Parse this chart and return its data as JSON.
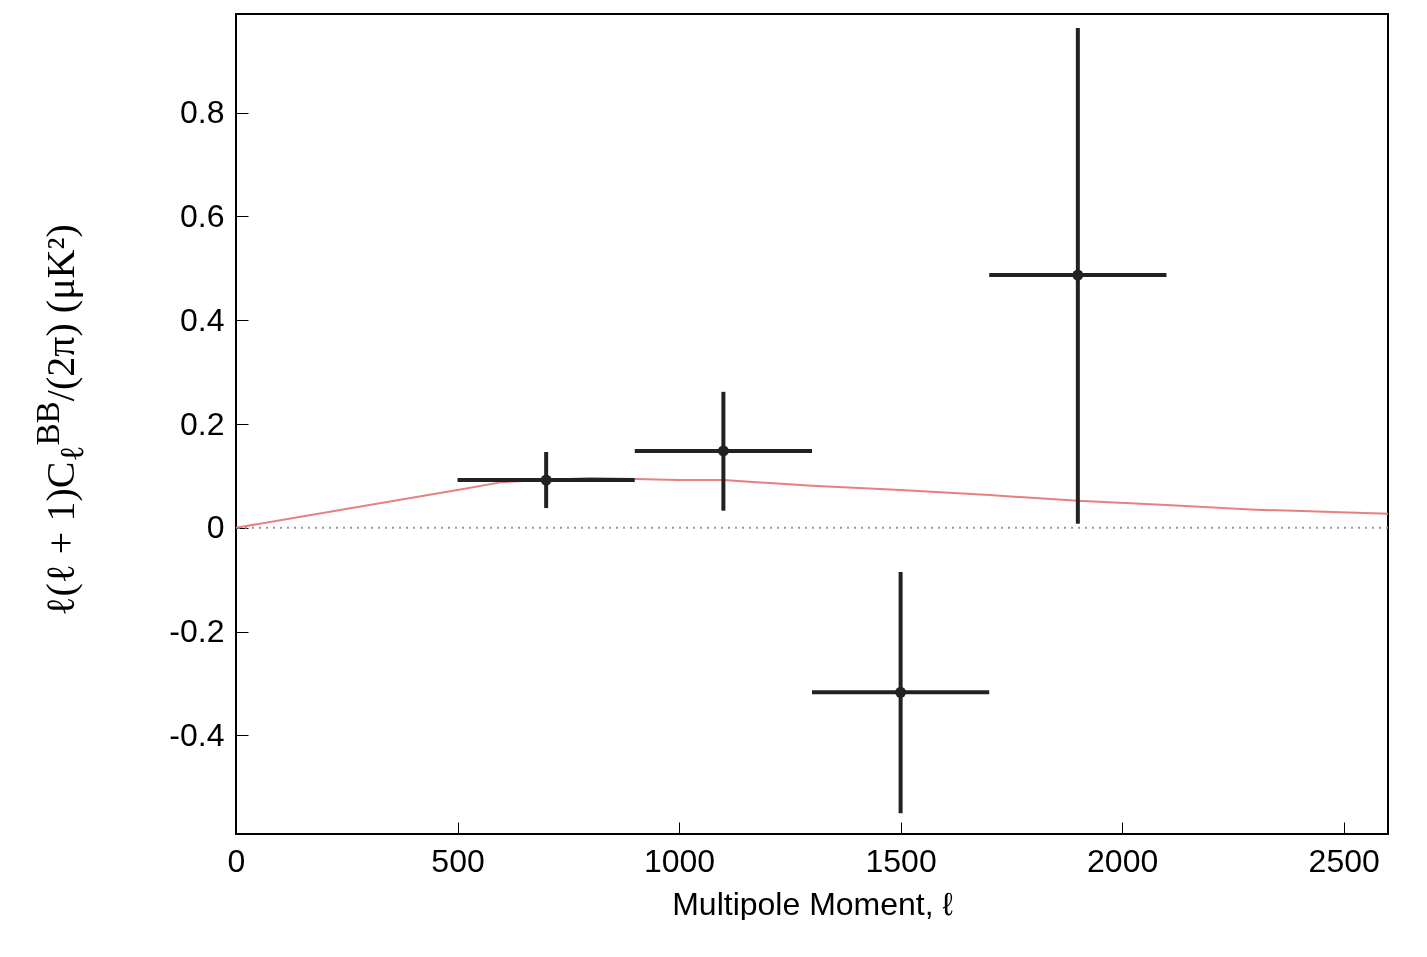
{
  "chart_data": {
    "type": "scatter",
    "xlabel": "Multipole Moment, ℓ",
    "ylabel": "ℓ(ℓ + 1)C$_{ℓ}$$^{BB}$/(2π)  (μK²)",
    "xlim": [
      0,
      2600
    ],
    "xticks": [
      0,
      500,
      1000,
      1500,
      2000,
      2500
    ],
    "ylim": [
      -0.59,
      0.99
    ],
    "yticks": [
      -0.4,
      -0.2,
      0,
      0.2,
      0.4,
      0.6,
      0.8
    ],
    "grid": false,
    "marker": "circle",
    "ref_lines": [
      {
        "axis": "y",
        "value": 0,
        "color": "#999999",
        "line_style": "dotted"
      }
    ],
    "series": [
      {
        "type": "line",
        "color": "#e88080",
        "line_style": "solid",
        "marker": "none",
        "x": [
          0,
          500,
          600,
          800,
          1000,
          1100,
          1300,
          1500,
          1700,
          1900,
          2100,
          2300,
          2600
        ],
        "values": [
          0,
          0.073,
          0.088,
          0.096,
          0.092,
          0.092,
          0.081,
          0.073,
          0.063,
          0.052,
          0.044,
          0.035,
          0.027
        ]
      },
      {
        "color": "#222222",
        "x": [
          700,
          1100,
          1500,
          1900
        ],
        "values": [
          0.092,
          0.148,
          -0.317,
          0.487
        ],
        "errors": [
          [
            0.038,
            0.146
          ],
          [
            0.033,
            0.262
          ],
          [
            -0.55,
            -0.085
          ],
          [
            0.008,
            0.963
          ]
        ],
        "xerrors": [
          200,
          200,
          200,
          200
        ]
      }
    ]
  }
}
